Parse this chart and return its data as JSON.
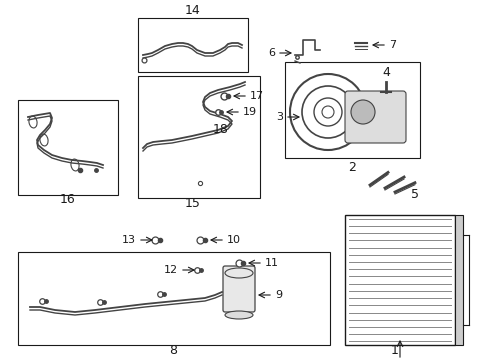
{
  "bg_color": "#ffffff",
  "figsize": [
    4.89,
    3.6
  ],
  "dpi": 100,
  "line_color": "#1a1a1a",
  "gray": "#444444",
  "light_gray": "#888888"
}
